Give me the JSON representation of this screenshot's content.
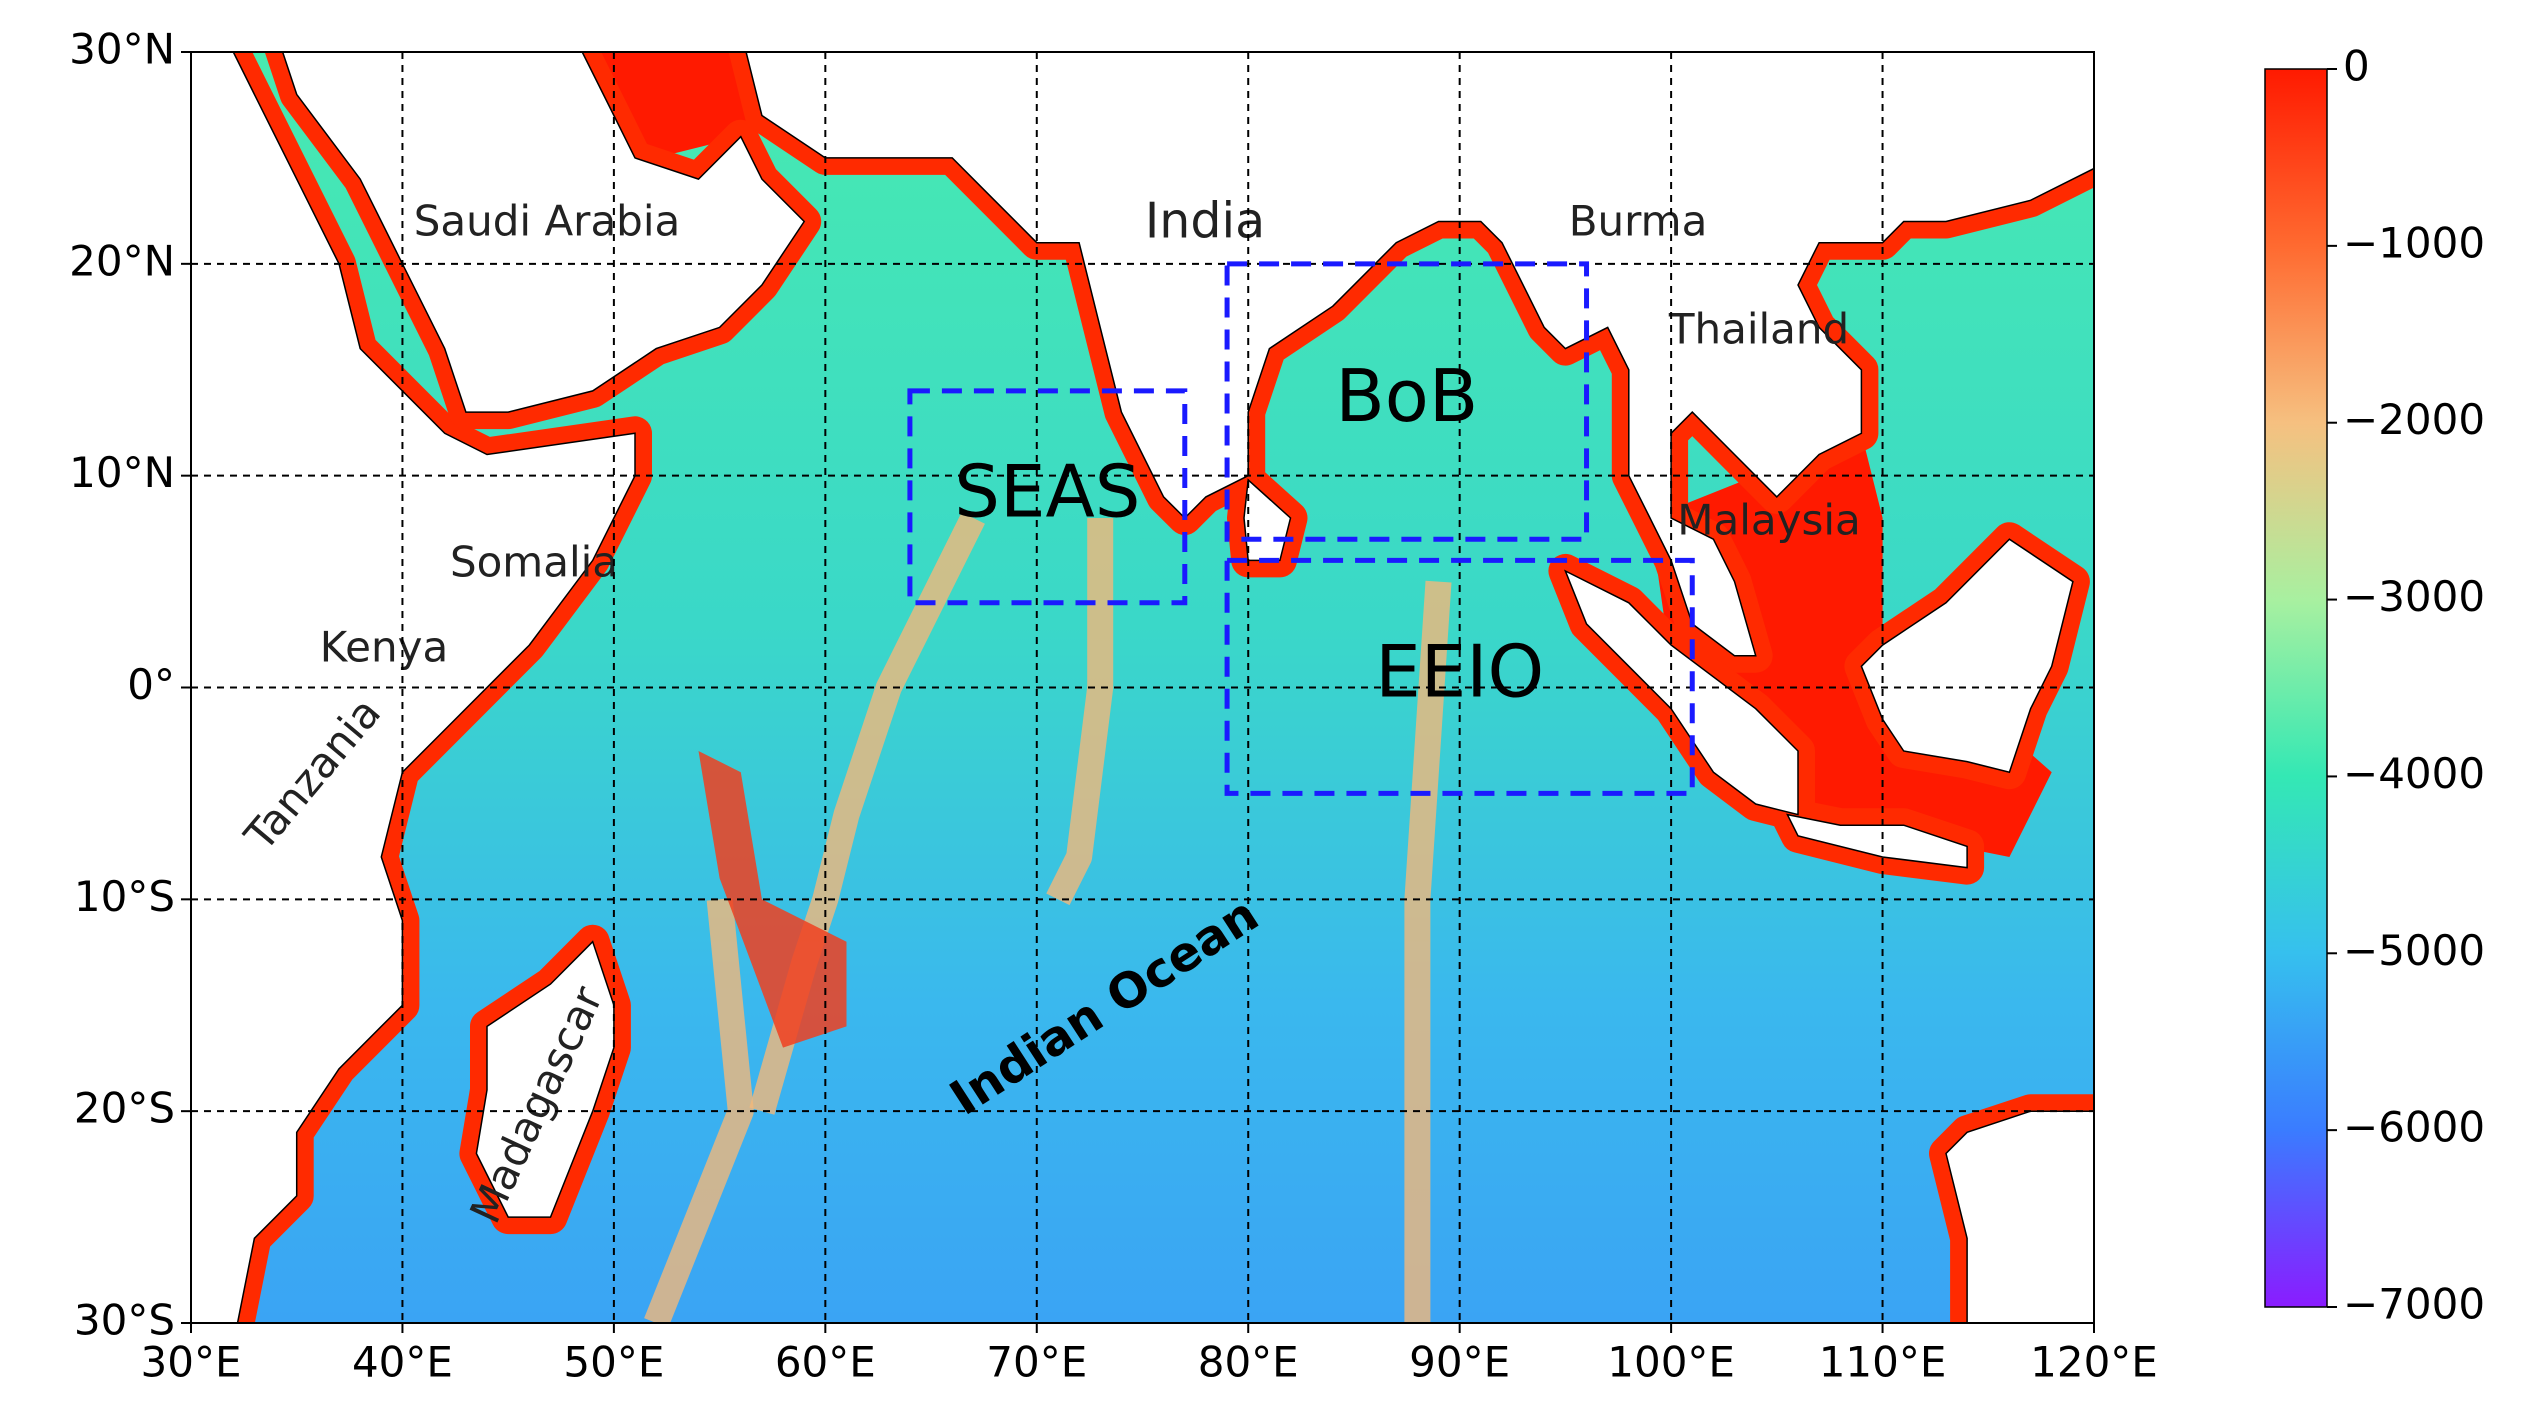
{
  "map": {
    "xlim": [
      30,
      120
    ],
    "ylim": [
      -30,
      30
    ],
    "xticks": [
      {
        "value": 30,
        "label": "30°E"
      },
      {
        "value": 40,
        "label": "40°E"
      },
      {
        "value": 50,
        "label": "50°E"
      },
      {
        "value": 60,
        "label": "60°E"
      },
      {
        "value": 70,
        "label": "70°E"
      },
      {
        "value": 80,
        "label": "80°E"
      },
      {
        "value": 90,
        "label": "90°E"
      },
      {
        "value": 100,
        "label": "100°E"
      },
      {
        "value": 110,
        "label": "110°E"
      },
      {
        "value": 120,
        "label": "120°E"
      }
    ],
    "yticks": [
      {
        "value": -30,
        "label": "30°S"
      },
      {
        "value": -20,
        "label": "20°S"
      },
      {
        "value": -10,
        "label": "10°S"
      },
      {
        "value": 0,
        "label": "0°"
      },
      {
        "value": 10,
        "label": "10°N"
      },
      {
        "value": 20,
        "label": "20°N"
      },
      {
        "value": 30,
        "label": "30°N"
      }
    ],
    "grid": true
  },
  "regions": [
    {
      "label": "SEAS",
      "lon": [
        64,
        77
      ],
      "lat": [
        4,
        14
      ],
      "color": "#1a1aff"
    },
    {
      "label": "BoB",
      "lon": [
        79,
        96
      ],
      "lat": [
        7,
        20
      ],
      "color": "#1a1aff"
    },
    {
      "label": "EEIO",
      "lon": [
        79,
        101
      ],
      "lat": [
        -5,
        6
      ],
      "color": "#1a1aff"
    }
  ],
  "place_labels": [
    "Saudi Arabia",
    "India",
    "Burma",
    "Thailand",
    "Malaysia",
    "Somalia",
    "Kenya",
    "Tanzania",
    "Madagascar",
    "Indian Ocean"
  ],
  "colorbar": {
    "lim": [
      -7000,
      0
    ],
    "ticks": [
      0,
      {
        "value": -1000,
        "label": "−1000"
      },
      {
        "value": -2000,
        "label": "−2000"
      },
      {
        "value": -3000,
        "label": "−3000"
      },
      {
        "value": -4000,
        "label": "−4000"
      },
      {
        "value": -5000,
        "label": "−5000"
      },
      {
        "value": -6000,
        "label": "−6000"
      },
      {
        "value": -7000,
        "label": "−7000"
      }
    ]
  }
}
